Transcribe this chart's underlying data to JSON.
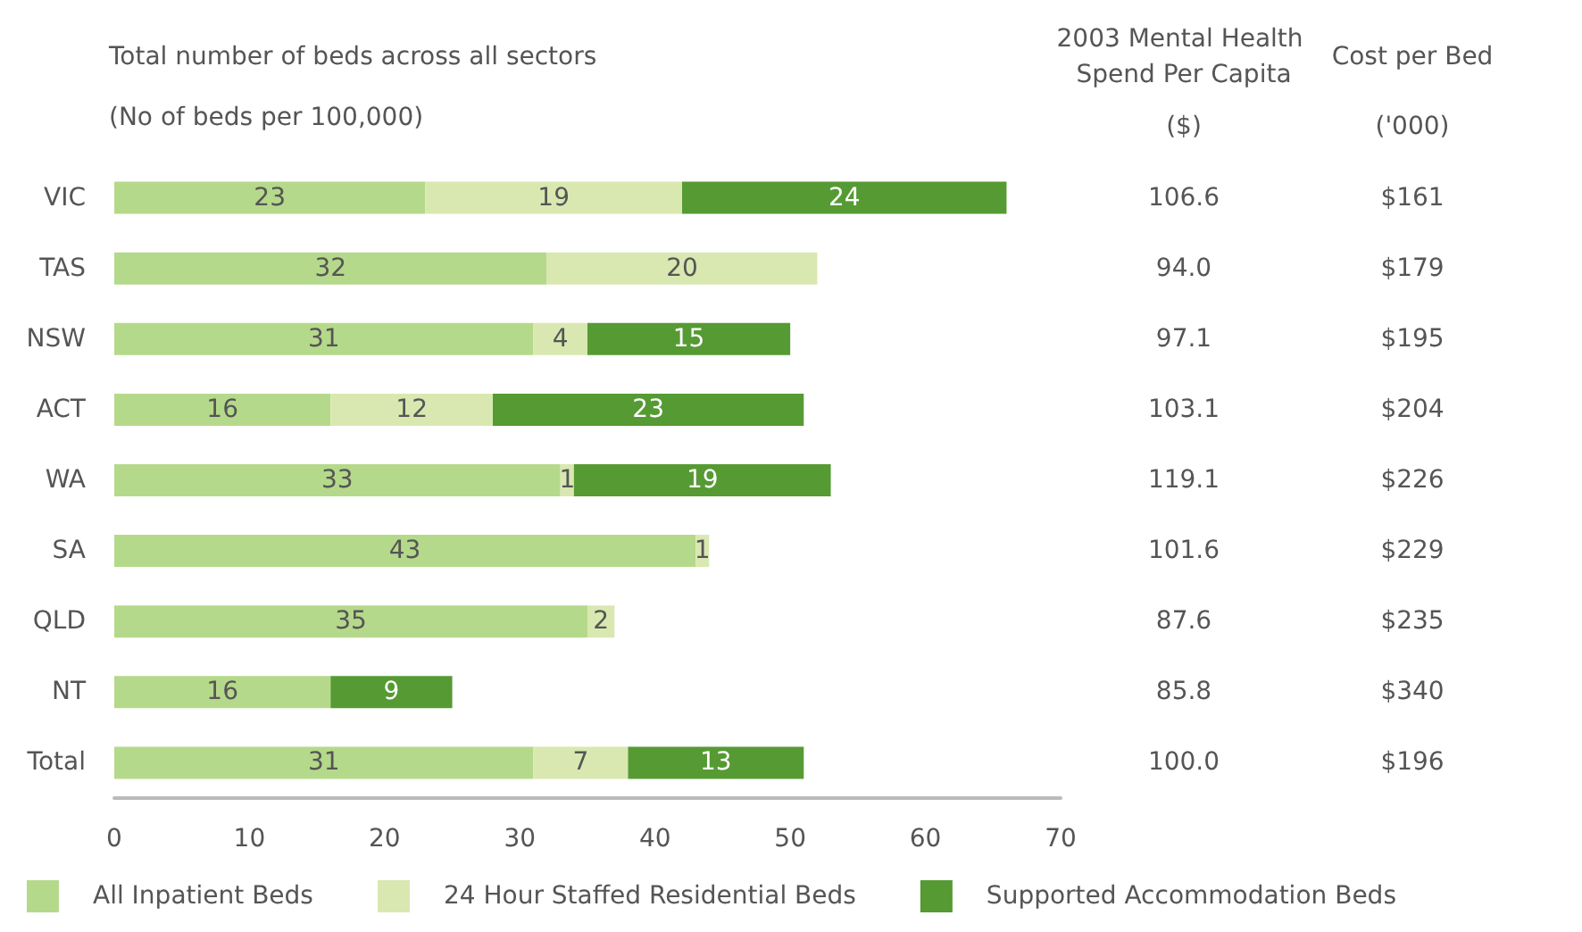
{
  "chart_data": {
    "type": "bar",
    "orientation": "horizontal",
    "stacked": true,
    "title": "Total number of beds across all sectors",
    "subtitle": "(No of beds per 100,000)",
    "categories": [
      "VIC",
      "TAS",
      "NSW",
      "ACT",
      "WA",
      "SA",
      "QLD",
      "NT",
      "Total"
    ],
    "series": [
      {
        "name": "All Inpatient Beds",
        "color": "#b5d98a",
        "values": [
          23,
          32,
          31,
          16,
          33,
          43,
          35,
          16,
          31
        ]
      },
      {
        "name": "24 Hour Staffed Residential Beds",
        "color": "#d9e8b0",
        "values": [
          19,
          20,
          4,
          12,
          1,
          1,
          2,
          null,
          7
        ]
      },
      {
        "name": "Supported Accommodation Beds",
        "color": "#569a33",
        "values": [
          24,
          null,
          15,
          23,
          19,
          null,
          null,
          9,
          13
        ]
      }
    ],
    "data_labels": true,
    "xlim": [
      0,
      70
    ],
    "xticks": [
      0,
      10,
      20,
      30,
      40,
      50,
      60,
      70
    ],
    "grid": false,
    "legend": "bottom",
    "annotations": [
      "2003 Mental Health Spend Per Capita",
      "($)",
      "Cost per Bed",
      "('000)",
      "106.6",
      "$161",
      "94.0",
      "$179",
      "97.1",
      "$195",
      "103.1",
      "$204",
      "119.1",
      "$226",
      "101.6",
      "$229",
      "87.6",
      "$235",
      "85.8",
      "$340",
      "100.0",
      "$196"
    ]
  }
}
